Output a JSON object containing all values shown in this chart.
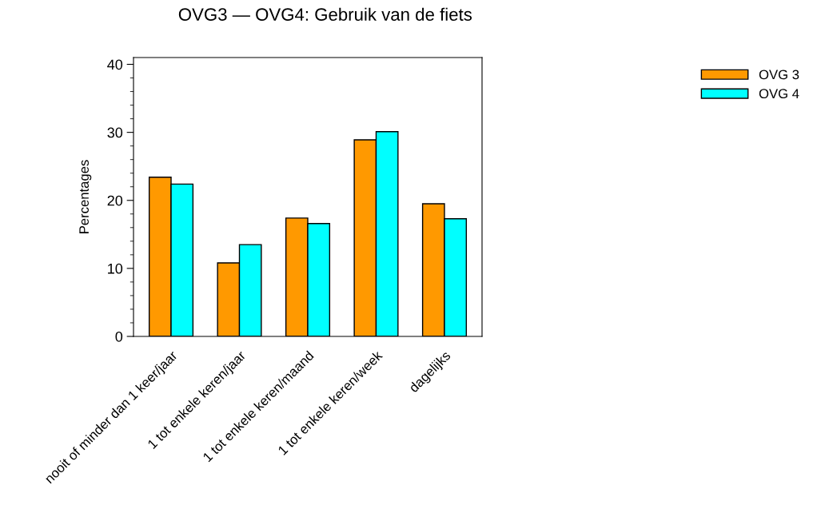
{
  "chart_data": {
    "type": "bar",
    "title": "OVG3 — OVG4: Gebruik van de fiets",
    "ylabel": "Percentages",
    "categories": [
      "nooit of minder dan 1 keer/jaar",
      "1 tot enkele keren/jaar",
      "1 tot enkele keren/maand",
      "1 tot enkele keren/week",
      "dagelijks"
    ],
    "series": [
      {
        "name": "OVG 3",
        "color": "#ff9900",
        "values": [
          23.4,
          10.8,
          17.4,
          28.9,
          19.5
        ]
      },
      {
        "name": "OVG 4",
        "color": "#00ffff",
        "values": [
          22.4,
          13.5,
          16.6,
          30.1,
          17.3
        ]
      }
    ],
    "ylim": [
      0,
      41
    ],
    "yticks": [
      0,
      10,
      20,
      30,
      40
    ],
    "grid": false,
    "legend": "top right"
  }
}
